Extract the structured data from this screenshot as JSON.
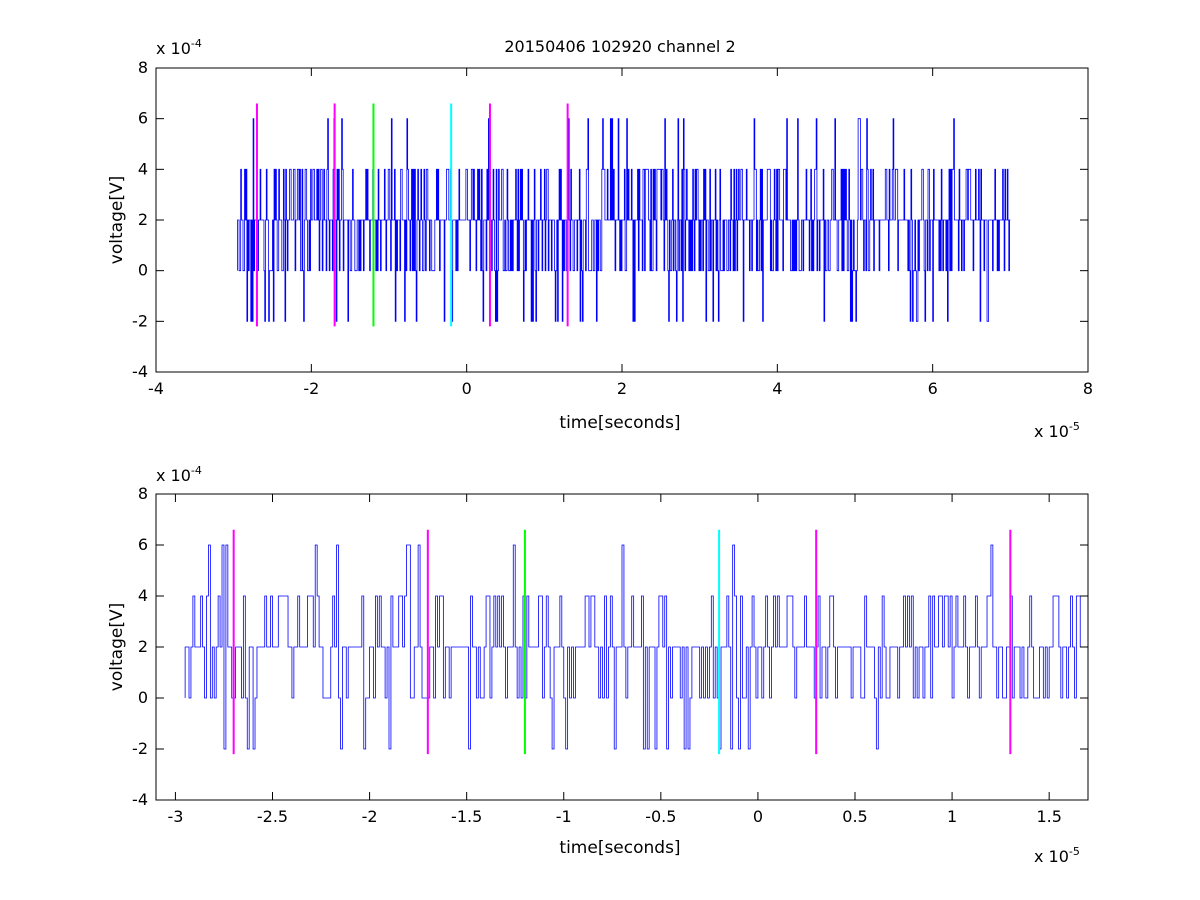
{
  "chart_data": [
    {
      "type": "line",
      "title": "20150406 102920 channel 2",
      "xlabel": "time[seconds]",
      "ylabel": "voltage[V]",
      "xlim": [
        -4e-05,
        8e-05
      ],
      "ylim": [
        -0.0004,
        0.0008
      ],
      "x_multiplier_label": "x 10",
      "x_multiplier_exp": "-5",
      "y_multiplier_label": "x 10",
      "y_multiplier_exp": "-4",
      "xticks": [
        -4,
        -2,
        0,
        2,
        4,
        6,
        8
      ],
      "xtick_labels": [
        "-4",
        "-2",
        "0",
        "2",
        "4",
        "6",
        "8"
      ],
      "yticks": [
        -4,
        -2,
        0,
        2,
        4,
        6,
        8
      ],
      "ytick_labels": [
        "-4",
        "-2",
        "0",
        "2",
        "4",
        "6",
        "8"
      ],
      "grid": false,
      "signal": {
        "color": "#0000ff",
        "x_start": -2.95e-05,
        "x_end": 7e-05,
        "levels": [
          -0.0002,
          0,
          0.0002,
          0.0004,
          0.0006
        ],
        "predominant_level": 0.0002
      },
      "markers": [
        {
          "x": -2.7e-05,
          "color": "#ff00ff",
          "y_range": [
            -0.00022,
            0.00066
          ]
        },
        {
          "x": -1.7e-05,
          "color": "#ff00ff",
          "y_range": [
            -0.00022,
            0.00066
          ]
        },
        {
          "x": -1.2e-05,
          "color": "#00ff00",
          "y_range": [
            -0.00022,
            0.00066
          ]
        },
        {
          "x": -2e-06,
          "color": "#00ffff",
          "y_range": [
            -0.00022,
            0.00066
          ]
        },
        {
          "x": 3e-06,
          "color": "#ff00ff",
          "y_range": [
            -0.00022,
            0.00066
          ]
        },
        {
          "x": 1.3e-05,
          "color": "#ff00ff",
          "y_range": [
            -0.00022,
            0.00066
          ]
        }
      ]
    },
    {
      "type": "line",
      "title": "",
      "xlabel": "time[seconds]",
      "ylabel": "voltage[V]",
      "xlim": [
        -3.1e-05,
        1.7e-05
      ],
      "ylim": [
        -0.0004,
        0.0008
      ],
      "x_multiplier_label": "x 10",
      "x_multiplier_exp": "-5",
      "y_multiplier_label": "x 10",
      "y_multiplier_exp": "-4",
      "xticks": [
        -3,
        -2.5,
        -2,
        -1.5,
        -1,
        -0.5,
        0,
        0.5,
        1,
        1.5
      ],
      "xtick_labels": [
        "-3",
        "-2.5",
        "-2",
        "-1.5",
        "-1",
        "-0.5",
        "0",
        "0.5",
        "1",
        "1.5"
      ],
      "yticks": [
        -4,
        -2,
        0,
        2,
        4,
        6,
        8
      ],
      "ytick_labels": [
        "-4",
        "-2",
        "0",
        "2",
        "4",
        "6",
        "8"
      ],
      "grid": false,
      "signal": {
        "color": "#0000ff",
        "x_start": -2.95e-05,
        "x_end": 1.7e-05,
        "levels": [
          -0.0002,
          0,
          0.0002,
          0.0004,
          0.0006
        ],
        "predominant_level": 0.0002
      },
      "markers": [
        {
          "x": -2.7e-05,
          "color": "#ff00ff",
          "y_range": [
            -0.00022,
            0.00066
          ]
        },
        {
          "x": -1.7e-05,
          "color": "#ff00ff",
          "y_range": [
            -0.00022,
            0.00066
          ]
        },
        {
          "x": -1.2e-05,
          "color": "#00ff00",
          "y_range": [
            -0.00022,
            0.00066
          ]
        },
        {
          "x": -2e-06,
          "color": "#00ffff",
          "y_range": [
            -0.00022,
            0.00066
          ]
        },
        {
          "x": 3e-06,
          "color": "#ff00ff",
          "y_range": [
            -0.00022,
            0.00066
          ]
        },
        {
          "x": 1.3e-05,
          "color": "#ff00ff",
          "y_range": [
            -0.00022,
            0.00066
          ]
        }
      ]
    }
  ]
}
